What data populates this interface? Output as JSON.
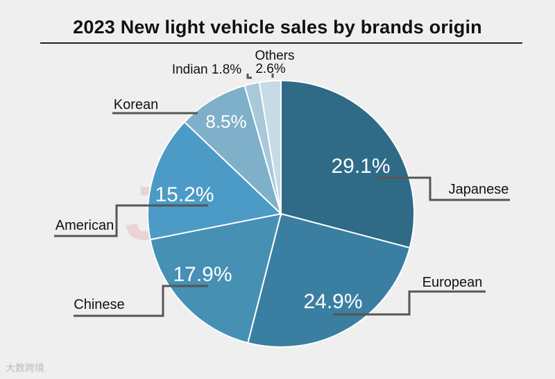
{
  "title": "2023 New light vehicle sales by brands origin",
  "watermark": {
    "text": "JATO",
    "color": "#e6a3a3"
  },
  "footer": "大数跨境",
  "colors": {
    "Japanese": "#2f6b87",
    "European": "#3a7fa1",
    "Chinese": "#4690b4",
    "American": "#4b9bc6",
    "Korean": "#7fb0ca",
    "Indian": "#a9c8d9",
    "Others": "#c6dbe6",
    "leader": "#555555",
    "slice_text": "#ffffff",
    "label_text": "#111111"
  },
  "chart_data": {
    "type": "pie",
    "title": "2023 New light vehicle sales by brands origin",
    "slices": [
      {
        "name": "Japanese",
        "value": 29.1,
        "label": "29.1%"
      },
      {
        "name": "European",
        "value": 24.9,
        "label": "24.9%"
      },
      {
        "name": "Chinese",
        "value": 17.9,
        "label": "17.9%"
      },
      {
        "name": "American",
        "value": 15.2,
        "label": "15.2%"
      },
      {
        "name": "Korean",
        "value": 8.5,
        "label": "8.5%"
      },
      {
        "name": "Indian",
        "value": 1.8,
        "label": "1.8%"
      },
      {
        "name": "Others",
        "value": 2.6,
        "label": "2.6%"
      }
    ]
  }
}
